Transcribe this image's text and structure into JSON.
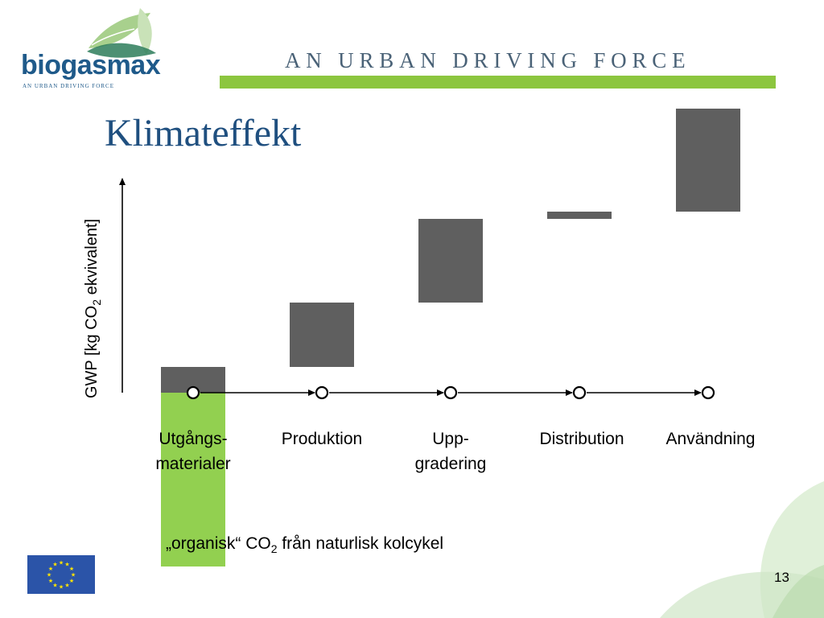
{
  "header": {
    "logo_text": "biogasmax",
    "logo_tagline": "AN URBAN DRIVING FORCE",
    "tagline": "AN URBAN DRIVING FORCE",
    "accent_color": "#8cc63f",
    "brand_color": "#1f5a8a"
  },
  "slide": {
    "title": "Klimateffekt",
    "page_number": "13"
  },
  "chart_data": {
    "type": "bar",
    "subtype": "waterfall",
    "ylabel_parts": [
      "GWP [kg CO",
      "2",
      " ekvivalent]"
    ],
    "categories": [
      "Utgångs-\nmaterialer",
      "Produktion",
      "Upp-\ngradering",
      "Distribution",
      "Användning"
    ],
    "bars": [
      {
        "category": "Utgångs-\nmaterialer",
        "start": 0,
        "end": 32,
        "color": "#5f5f5f"
      },
      {
        "category": "Utgångs-\nmaterialer",
        "start": 0,
        "end": -216,
        "color": "#92d050"
      },
      {
        "category": "Produktion",
        "start": 32,
        "end": 112,
        "color": "#5f5f5f"
      },
      {
        "category": "Upp-\ngradering",
        "start": 112,
        "end": 216,
        "color": "#5f5f5f"
      },
      {
        "category": "Distribution",
        "start": 216,
        "end": 225,
        "color": "#5f5f5f"
      },
      {
        "category": "Användning",
        "start": 225,
        "end": 353,
        "color": "#5f5f5f"
      }
    ],
    "annotation_parts": [
      "„organisk“ CO",
      "2",
      " från naturlisk kolcykel"
    ],
    "grid": false,
    "legend": "none"
  }
}
